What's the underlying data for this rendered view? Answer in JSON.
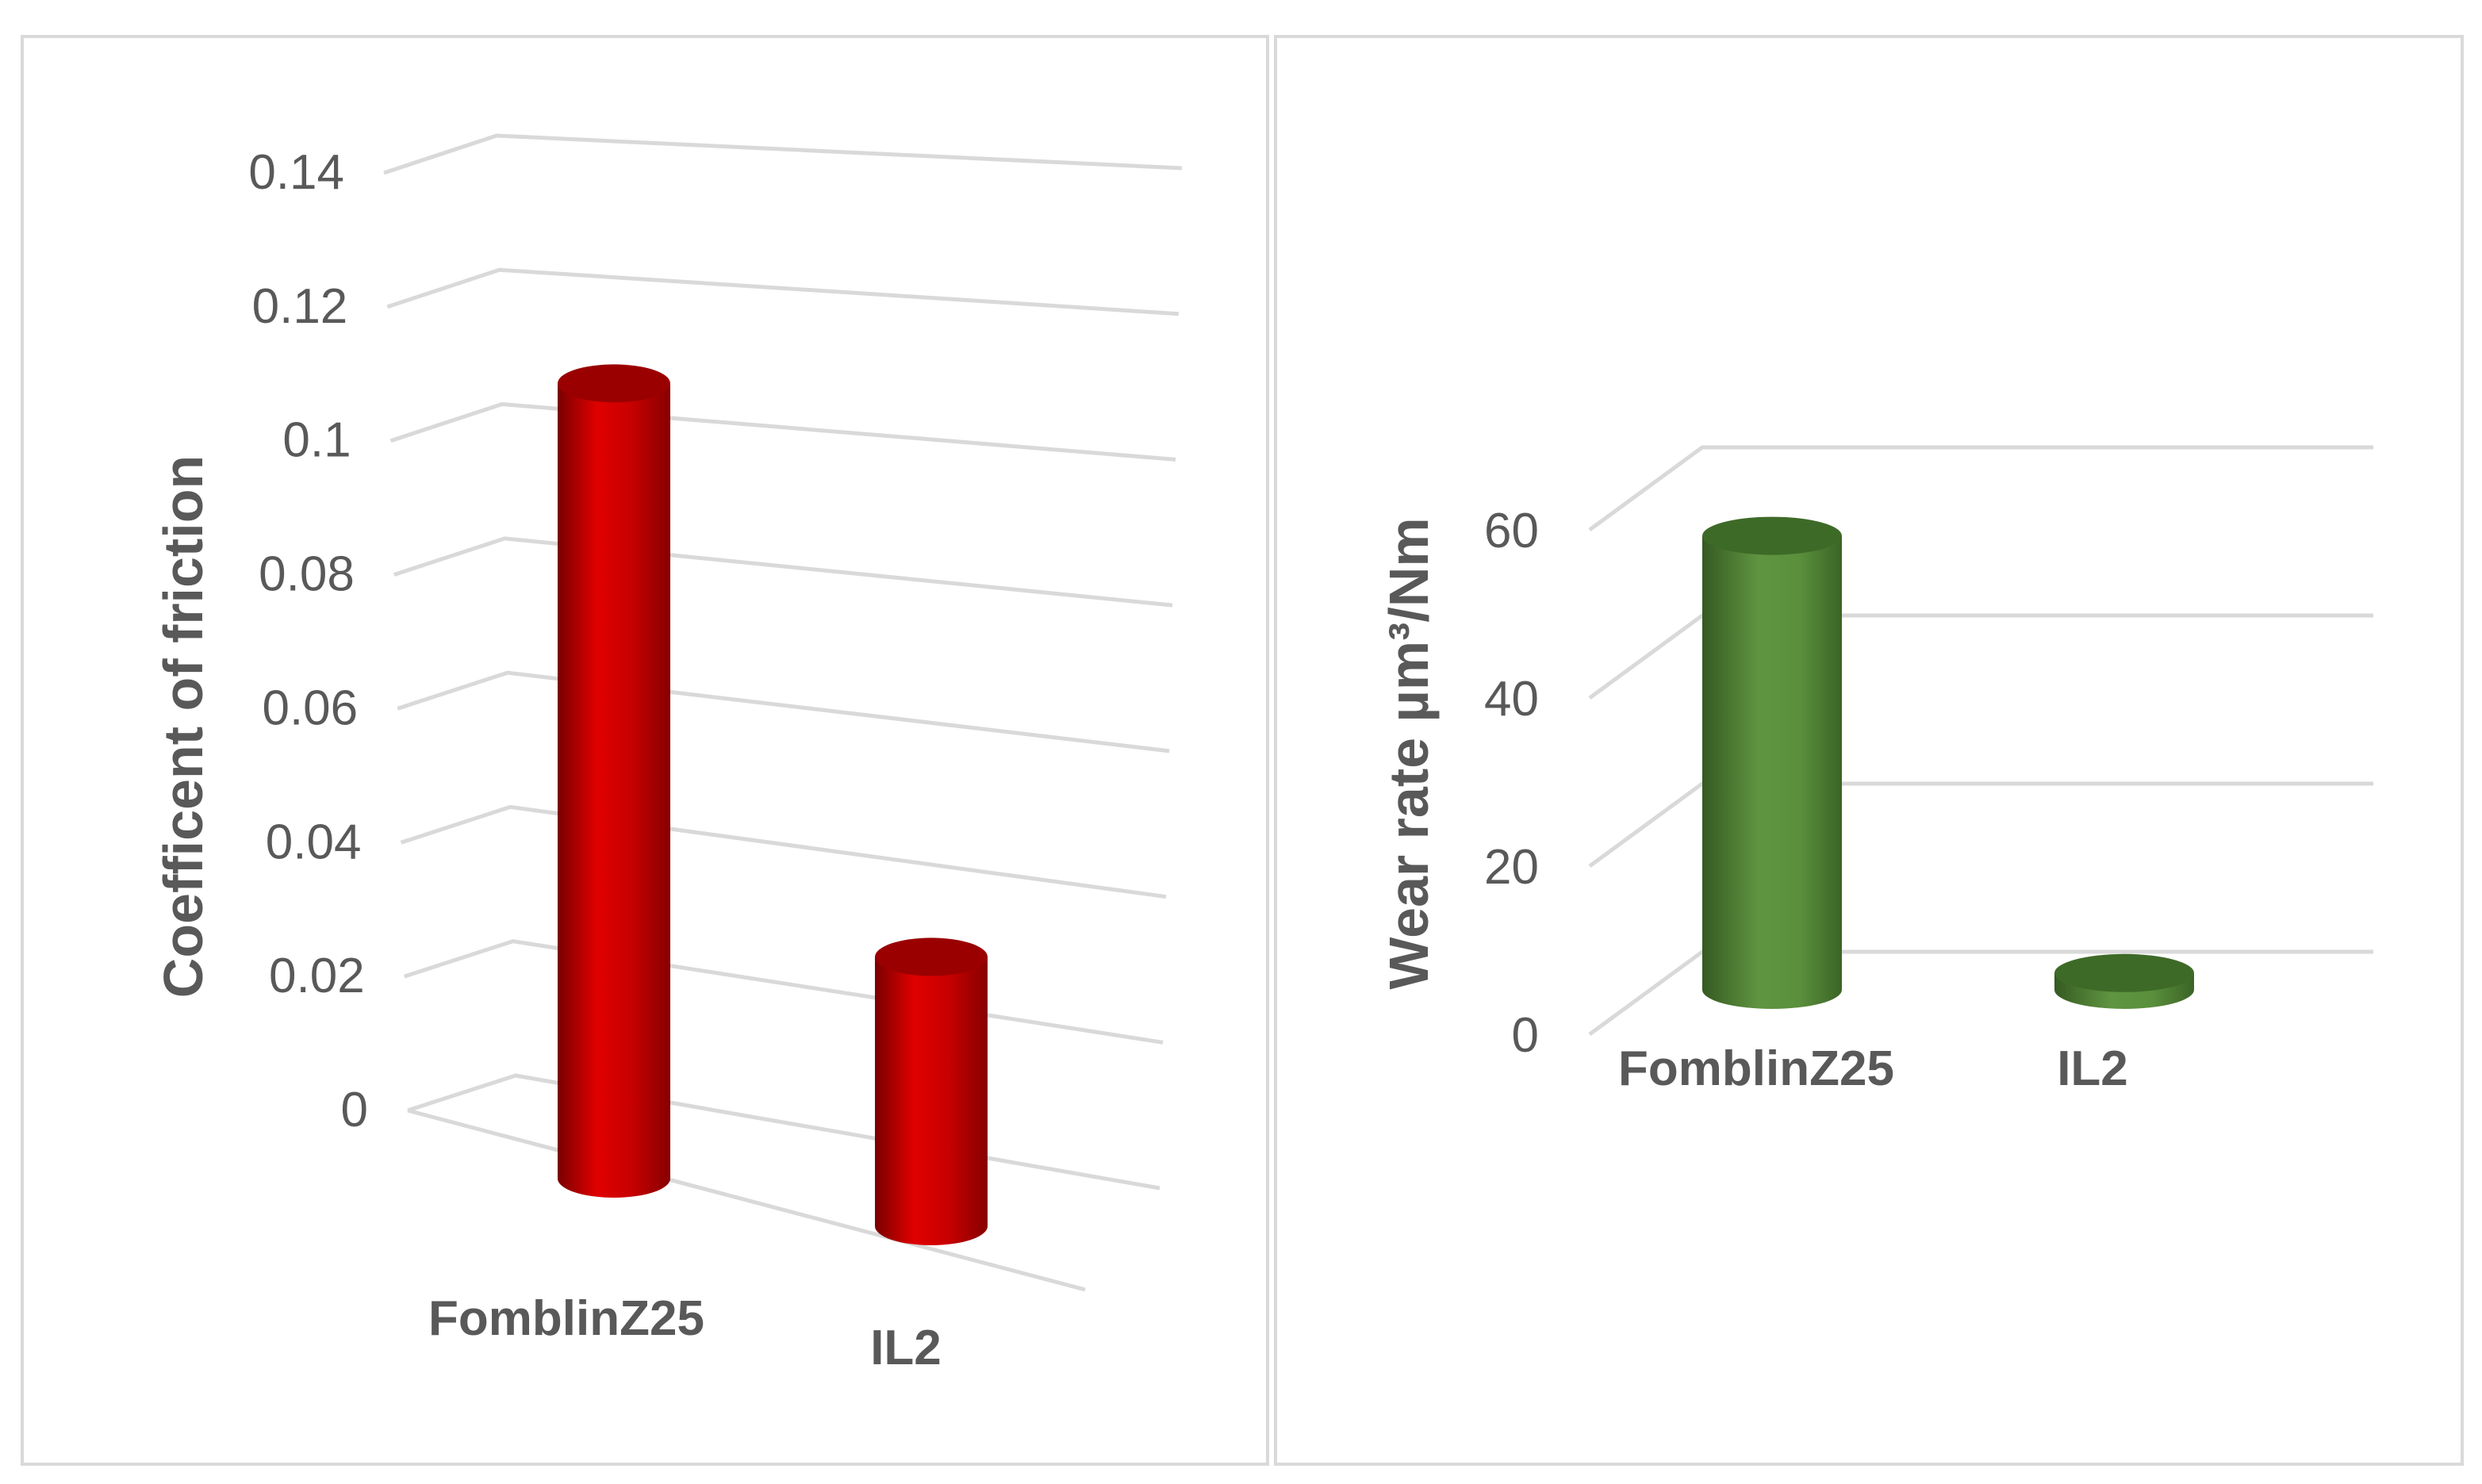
{
  "chart_data": [
    {
      "type": "bar",
      "style": "3d-cylinder",
      "categories": [
        "FomblinZ25",
        "IL2"
      ],
      "values": [
        0.124,
        0.042
      ],
      "ylabel": "Coefficent of friction",
      "ylim": [
        0,
        0.14
      ],
      "yticks": [
        "0",
        "0.02",
        "0.04",
        "0.06",
        "0.08",
        "0.1",
        "0.12",
        "0.14"
      ],
      "grid": true,
      "color": "#c00000"
    },
    {
      "type": "bar",
      "style": "3d-cylinder",
      "categories": [
        "FomblinZ25",
        "IL2"
      ],
      "values": [
        54,
        2
      ],
      "ylabel": "Wear rate µm³/Nm",
      "ylim": [
        0,
        60
      ],
      "yticks": [
        "0",
        "20",
        "40",
        "60"
      ],
      "grid": true,
      "color": "#548235"
    }
  ]
}
